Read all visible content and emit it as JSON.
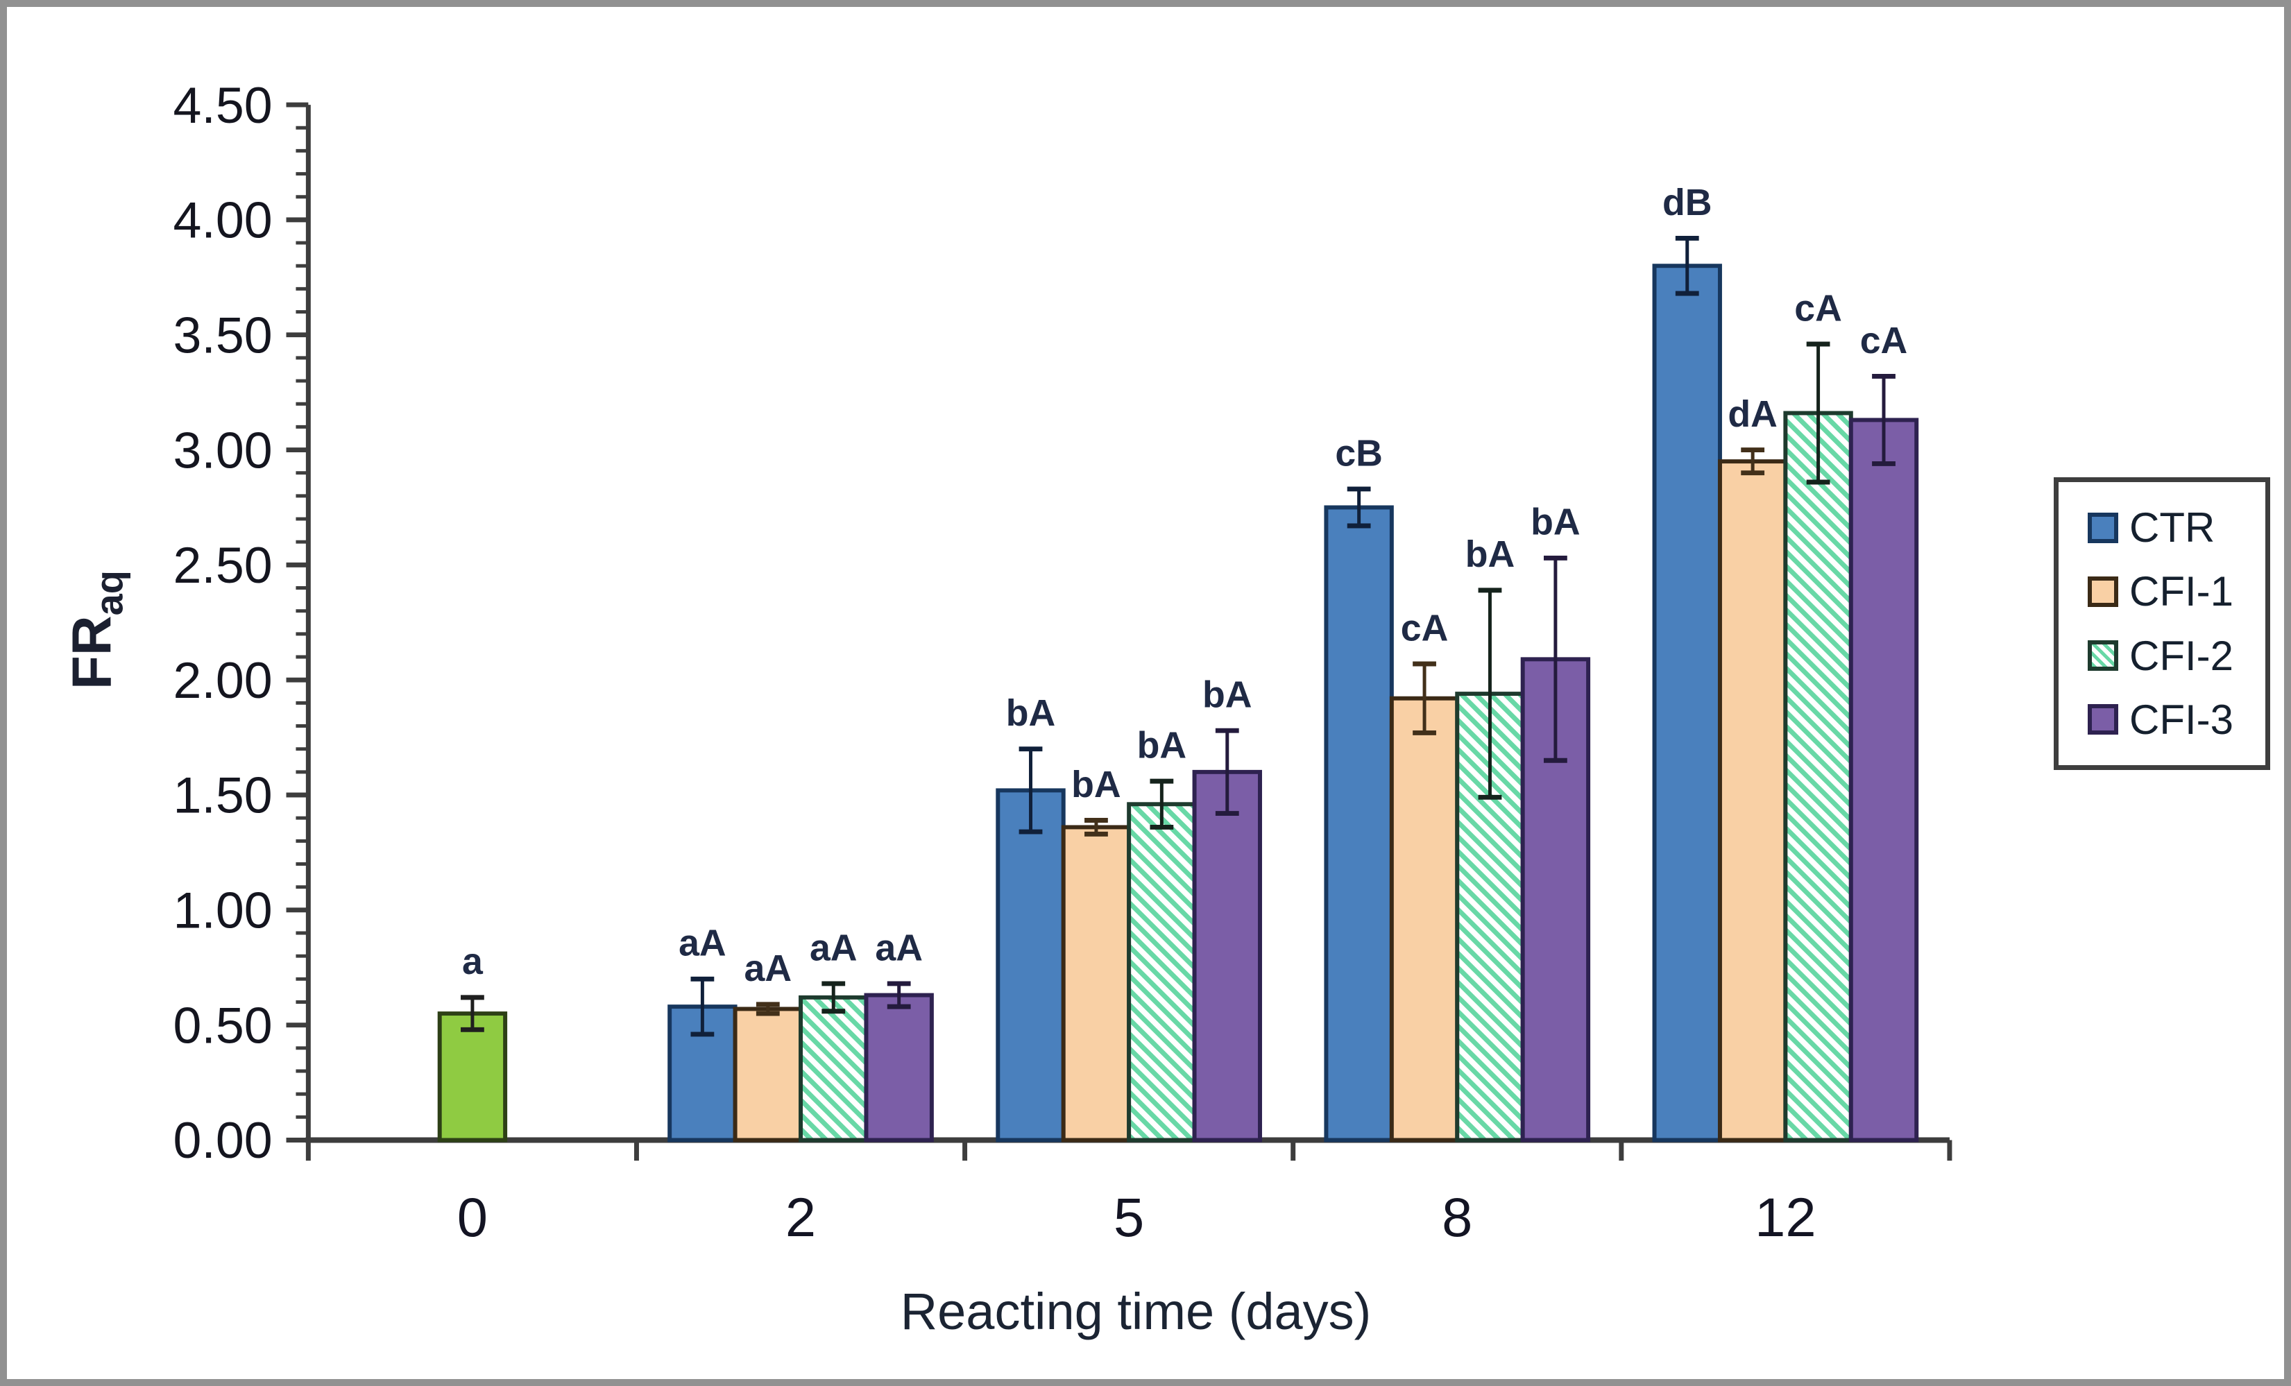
{
  "figure": {
    "frame_border_color": "#919191",
    "background": "#ffffff"
  },
  "chart_data": {
    "type": "bar",
    "title": "",
    "xlabel": "Reacting time (days)",
    "ylabel": {
      "main": "FR",
      "sub": "aq"
    },
    "ylim": [
      0,
      4.5
    ],
    "ytick_step": 0.5,
    "ytick_minor_step": 0.1,
    "yticks": [
      "0.00",
      "0.50",
      "1.00",
      "1.50",
      "2.00",
      "2.50",
      "3.00",
      "3.50",
      "4.00",
      "4.50"
    ],
    "categories": [
      "0",
      "2",
      "5",
      "8",
      "12"
    ],
    "grid": false,
    "legend_position": "right",
    "axis_color": "#3d3d3d",
    "tick_label_color": "#14151f",
    "sig_label_color": "#1f2a45",
    "time_zero_bar": {
      "category": "0",
      "value": 0.55,
      "error": 0.07,
      "sig_label": "a",
      "fill": "#8FCB42",
      "stroke": "#2D4016",
      "error_color": "#1f1f1f"
    },
    "series": [
      {
        "name": "CTR",
        "pattern": "solid",
        "fill": "#4A80BD",
        "stroke": "#17375E",
        "error_color": "#10203a",
        "values": [
          null,
          0.58,
          1.52,
          2.75,
          3.8
        ],
        "errors": [
          null,
          0.12,
          0.18,
          0.08,
          0.12
        ],
        "sig_labels": [
          null,
          "aA",
          "bA",
          "cB",
          "dB"
        ]
      },
      {
        "name": "CFI-1",
        "pattern": "solid",
        "fill": "#F9D0A5",
        "stroke": "#3B2A16",
        "error_color": "#42301a",
        "values": [
          null,
          0.57,
          1.36,
          1.92,
          2.95
        ],
        "errors": [
          null,
          0.02,
          0.03,
          0.15,
          0.05
        ],
        "sig_labels": [
          null,
          "aA",
          "bA",
          "cA",
          "dA"
        ]
      },
      {
        "name": "CFI-2",
        "pattern": "diagonal-hatch",
        "fill": "#FFFFFF",
        "hatch_color": "#68D8A6",
        "stroke": "#1E3B2E",
        "error_color": "#15231c",
        "values": [
          null,
          0.62,
          1.46,
          1.94,
          3.16
        ],
        "errors": [
          null,
          0.06,
          0.1,
          0.45,
          0.3
        ],
        "sig_labels": [
          null,
          "aA",
          "bA",
          "bA",
          "cA"
        ]
      },
      {
        "name": "CFI-3",
        "pattern": "solid",
        "fill": "#7B5EA7",
        "stroke": "#2E2250",
        "error_color": "#241b3d",
        "values": [
          null,
          0.63,
          1.6,
          2.09,
          3.13
        ],
        "errors": [
          null,
          0.05,
          0.18,
          0.44,
          0.19
        ],
        "sig_labels": [
          null,
          "aA",
          "bA",
          "bA",
          "cA"
        ]
      }
    ],
    "legend": {
      "entries": [
        "CTR",
        "CFI-1",
        "CFI-2",
        "CFI-3"
      ]
    }
  }
}
